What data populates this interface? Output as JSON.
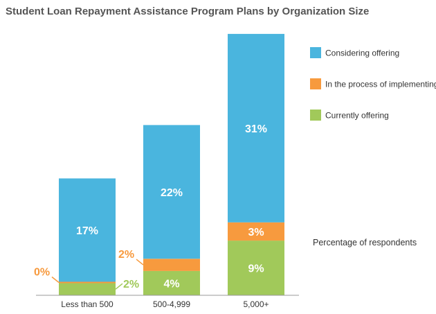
{
  "chart_data": {
    "type": "bar",
    "stacked": true,
    "title": "Student Loan Repayment Assistance Program Plans by Organization Size",
    "categories": [
      "Less than 500",
      "500-4,999",
      "5,000+"
    ],
    "series": [
      {
        "name": "Currently offering",
        "values": [
          2,
          4,
          9
        ],
        "labels": [
          "2%",
          "4%",
          "9%"
        ],
        "color": "#a1c95a"
      },
      {
        "name": "In the process of implementing",
        "values": [
          0,
          2,
          3
        ],
        "labels": [
          "0%",
          "2%",
          "3%"
        ],
        "color": "#f79a3e"
      },
      {
        "name": "Considering offering",
        "values": [
          17,
          22,
          31
        ],
        "labels": [
          "17%",
          "22%",
          "31%"
        ],
        "color": "#4ab5de"
      }
    ],
    "legend_order": [
      "Considering offering",
      "In the process of implementing",
      "Currently offering"
    ],
    "legend_position": "right",
    "note": "Percentage of respondents",
    "grid": false,
    "ylim": [
      0,
      44
    ]
  }
}
